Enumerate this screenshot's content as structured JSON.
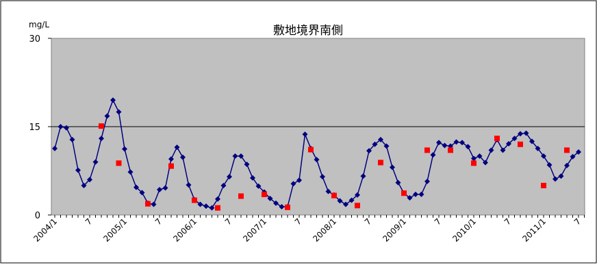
{
  "chart_data": {
    "type": "line",
    "title": "敷地境界南側",
    "unit_label": "mg/L",
    "ylim": [
      0,
      30
    ],
    "y_ticks": [
      "0",
      "15",
      "30"
    ],
    "reference_line": 15,
    "x_tick_labels": [
      "2004/1",
      "7",
      "2005/1",
      "7",
      "2006/1",
      "7",
      "2007/1",
      "7",
      "2008/1",
      "7",
      "2009/1",
      "7",
      "2010/1",
      "7",
      "2011/1",
      "7"
    ],
    "grid": false,
    "plot_background": "#c0c0c0",
    "series": [
      {
        "marker": "diamond",
        "color": "#000080",
        "x": [
          0,
          1,
          2,
          3,
          4,
          5,
          6,
          7,
          8,
          9,
          10,
          11,
          12,
          13,
          14,
          15,
          16,
          17,
          18,
          19,
          20,
          21,
          22,
          23,
          24,
          25,
          26,
          27,
          28,
          29,
          30,
          31,
          32,
          33,
          34,
          35,
          36,
          37,
          38,
          39,
          40,
          41,
          42,
          43,
          44,
          45,
          46,
          47,
          48,
          49,
          50,
          51,
          52,
          53,
          54,
          55,
          56,
          57,
          58,
          59,
          60,
          61,
          62,
          63,
          64,
          65,
          66,
          67,
          68,
          69,
          70,
          71,
          72,
          73,
          74,
          75,
          76,
          77,
          78,
          79,
          80,
          81,
          82,
          83,
          84,
          85,
          86,
          87,
          88,
          89,
          90
        ],
        "values": [
          11.3,
          15.0,
          14.8,
          12.8,
          7.6,
          5.0,
          6.0,
          9.0,
          13.0,
          16.8,
          19.5,
          17.5,
          11.2,
          7.3,
          4.7,
          3.8,
          2.0,
          1.8,
          4.3,
          4.6,
          9.5,
          11.5,
          9.8,
          5.1,
          2.6,
          1.8,
          1.5,
          1.2,
          2.7,
          5.0,
          6.5,
          10.0,
          10.0,
          8.6,
          6.3,
          4.9,
          3.9,
          2.8,
          2.0,
          1.4,
          1.4,
          5.3,
          5.9,
          13.7,
          11.3,
          9.4,
          6.5,
          4.0,
          3.4,
          2.4,
          1.8,
          2.5,
          3.4,
          6.6,
          10.9,
          12.0,
          12.8,
          11.7,
          8.1,
          5.5,
          3.7,
          2.9,
          3.5,
          3.5,
          5.7,
          10.2,
          12.3,
          11.8,
          11.7,
          12.4,
          12.3,
          11.6,
          9.6,
          10.0,
          8.9,
          11.0,
          12.8,
          11.0,
          12.1,
          13.0,
          13.8,
          13.9,
          12.5,
          11.3,
          10.0,
          8.5,
          6.1,
          6.6,
          8.4,
          9.9,
          10.7
        ]
      },
      {
        "marker": "square",
        "color": "#ff0000",
        "x": [
          8,
          11,
          16,
          20,
          24,
          28,
          32,
          36,
          40,
          44,
          48,
          52,
          56,
          60,
          64,
          68,
          72,
          76,
          80,
          84,
          88
        ],
        "values": [
          15.1,
          8.8,
          1.9,
          8.3,
          2.5,
          1.2,
          3.2,
          3.5,
          1.3,
          11.1,
          3.3,
          1.6,
          8.9,
          3.7,
          11.0,
          11.0,
          8.8,
          13.0,
          12.0,
          5.0,
          11.0
        ]
      }
    ]
  }
}
